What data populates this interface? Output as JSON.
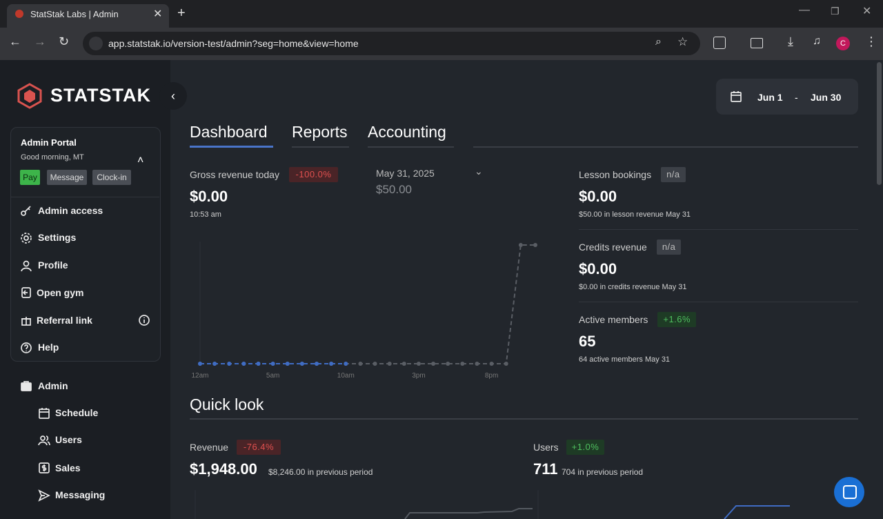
{
  "browser": {
    "tab_title": "StatStak Labs | Admin",
    "url": "app.statstak.io/version-test/admin?seg=home&view=home",
    "profile_initial": "C"
  },
  "sidebar": {
    "brand": "STATSTAK",
    "portal": {
      "title": "Admin Portal",
      "greeting": "Good morning, MT",
      "buttons": [
        "Pay",
        "Message",
        "Clock-in"
      ]
    },
    "menu": [
      "Admin access",
      "Settings",
      "Profile",
      "Open gym",
      "Referral link",
      "Help"
    ],
    "section": "Admin",
    "submenu": [
      "Schedule",
      "Users",
      "Sales",
      "Messaging"
    ]
  },
  "date_range": {
    "start": "Jun 1",
    "separator": "-",
    "end": "Jun 30"
  },
  "tabs": [
    "Dashboard",
    "Reports",
    "Accounting"
  ],
  "gross": {
    "label": "Gross revenue today",
    "badge": "-100.0%",
    "value": "$0.00",
    "time": "10:53 am",
    "compare_date": "May 31, 2025",
    "compare_value": "$50.00"
  },
  "chart_data": {
    "type": "line",
    "x_labels": [
      {
        "value": 0,
        "label": "12am"
      },
      {
        "value": 5,
        "label": "5am"
      },
      {
        "value": 10,
        "label": "10am"
      },
      {
        "value": 15,
        "label": "3pm"
      },
      {
        "value": 20,
        "label": "8pm"
      }
    ],
    "xlim": [
      0,
      23
    ],
    "ylim": [
      0,
      50
    ],
    "series": [
      {
        "name": "Today",
        "color": "#3f6cc4",
        "values": [
          0,
          0,
          0,
          0,
          0,
          0,
          0,
          0,
          0,
          0,
          0
        ]
      },
      {
        "name": "May 31",
        "color": "#5a5e65",
        "values": [
          0,
          0,
          0,
          0,
          0,
          0,
          0,
          0,
          0,
          0,
          0,
          0,
          0,
          0,
          0,
          0,
          0,
          0,
          0,
          0,
          0,
          0,
          50,
          50
        ]
      }
    ]
  },
  "stats": [
    {
      "label": "Lesson bookings",
      "badge": "n/a",
      "value": "$0.00",
      "note": "$50.00 in lesson revenue May 31"
    },
    {
      "label": "Credits revenue",
      "badge": "n/a",
      "value": "$0.00",
      "note": "$0.00 in credits revenue May 31"
    },
    {
      "label": "Active members",
      "badge": "+1.6%",
      "value": "65",
      "note": "64 active members May 31"
    }
  ],
  "quick_look": {
    "title": "Quick look",
    "revenue": {
      "label": "Revenue",
      "badge": "-76.4%",
      "value": "$1,948.00",
      "previous": "$8,246.00 in previous period"
    },
    "users": {
      "label": "Users",
      "badge": "+1.0%",
      "value": "711",
      "previous": "704 in previous period"
    }
  }
}
